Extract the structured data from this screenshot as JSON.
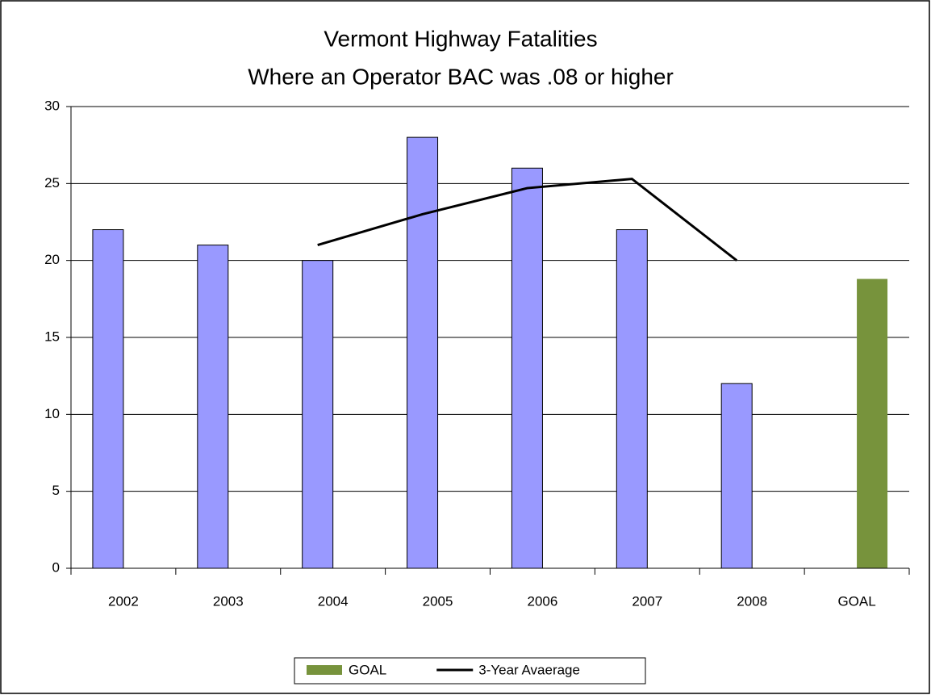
{
  "chart_data": {
    "type": "bar",
    "title": "Vermont Highway Fatalities",
    "subtitle": "Where an Operator  BAC was .08 or higher",
    "categories": [
      "2002",
      "2003",
      "2004",
      "2005",
      "2006",
      "2007",
      "2008",
      "GOAL"
    ],
    "series": [
      {
        "color": "#9999ff",
        "values": [
          22,
          21,
          20,
          28,
          26,
          22,
          12,
          null
        ]
      },
      {
        "name": "GOAL",
        "color": "#77933c",
        "values": [
          null,
          null,
          null,
          null,
          null,
          null,
          null,
          18.8
        ]
      },
      {
        "name": "3-Year Avaerage",
        "type": "line",
        "color": "#000000",
        "values": [
          null,
          null,
          21,
          23,
          24.7,
          25.3,
          20,
          null
        ]
      }
    ],
    "ylim": [
      0,
      30
    ],
    "yticks": [
      0,
      5,
      10,
      15,
      20,
      25,
      30
    ],
    "grid": true,
    "legend": "bottom"
  }
}
